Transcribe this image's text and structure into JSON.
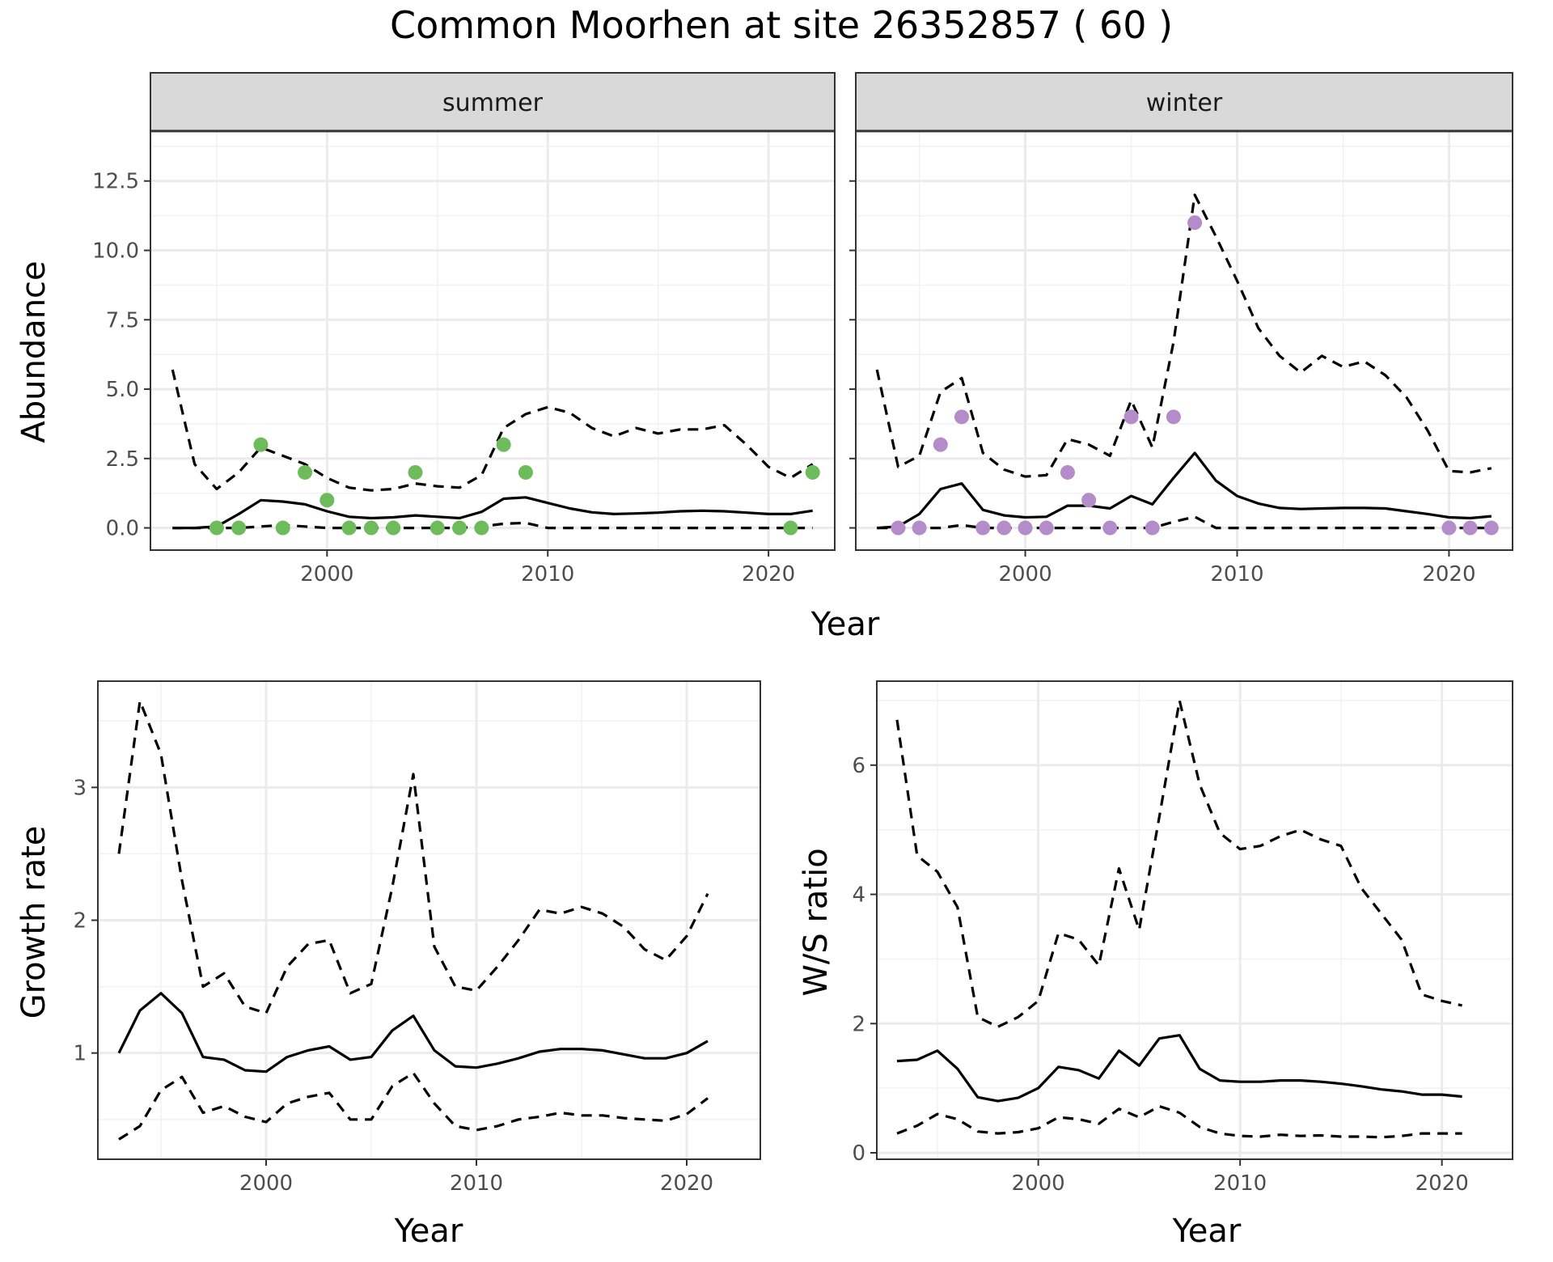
{
  "title": "Common Moorhen at site 26352857 ( 60 )",
  "colors": {
    "summer_points": "#6dbb5b",
    "winter_points": "#b48cc9",
    "lines": "#000000",
    "strip_bg": "#d9d9d9",
    "grid_major": "#ebebeb",
    "grid_minor": "#f2f2f2"
  },
  "chart_data": [
    {
      "type": "line",
      "facet": "summer",
      "xlabel": "Year",
      "ylabel": "Abundance",
      "xlim": [
        1992,
        2023
      ],
      "ylim": [
        -0.8,
        14.3
      ],
      "xticks": [
        2000,
        2010,
        2020
      ],
      "yticks": [
        0.0,
        2.5,
        5.0,
        7.5,
        10.0,
        12.5
      ],
      "ytick_labels": [
        "0.0",
        "2.5",
        "5.0",
        "7.5",
        "10.0",
        "12.5"
      ],
      "grid": true,
      "x": [
        1993,
        1994,
        1995,
        1996,
        1997,
        1998,
        1999,
        2000,
        2001,
        2002,
        2003,
        2004,
        2005,
        2006,
        2007,
        2008,
        2009,
        2010,
        2011,
        2012,
        2013,
        2014,
        2015,
        2016,
        2017,
        2018,
        2019,
        2020,
        2021,
        2022
      ],
      "series": [
        {
          "role": "upper",
          "style": "dashed",
          "values": [
            5.7,
            2.3,
            1.4,
            2.0,
            2.9,
            2.6,
            2.3,
            1.8,
            1.45,
            1.35,
            1.4,
            1.6,
            1.5,
            1.45,
            1.9,
            3.6,
            4.1,
            4.35,
            4.15,
            3.6,
            3.3,
            3.6,
            3.4,
            3.55,
            3.55,
            3.7,
            3.0,
            2.2,
            1.8,
            2.3
          ]
        },
        {
          "role": "mean",
          "style": "solid",
          "values": [
            0.0,
            0.0,
            0.05,
            0.5,
            1.0,
            0.95,
            0.85,
            0.6,
            0.4,
            0.35,
            0.38,
            0.45,
            0.4,
            0.35,
            0.58,
            1.05,
            1.1,
            0.9,
            0.7,
            0.56,
            0.5,
            0.52,
            0.55,
            0.6,
            0.62,
            0.6,
            0.55,
            0.5,
            0.5,
            0.62
          ]
        },
        {
          "role": "lower",
          "style": "dashed",
          "values": [
            0.0,
            0.0,
            0.0,
            0.0,
            0.05,
            0.1,
            0.05,
            0.0,
            0.0,
            0.0,
            0.0,
            0.0,
            0.0,
            0.0,
            0.05,
            0.15,
            0.18,
            0.0,
            0.0,
            0.0,
            0.0,
            0.0,
            0.0,
            0.0,
            0.0,
            0.0,
            0.0,
            0.0,
            0.0,
            0.0
          ]
        }
      ],
      "points": {
        "x": [
          1995,
          1996,
          1997,
          1998,
          1999,
          2000,
          2001,
          2002,
          2003,
          2004,
          2005,
          2006,
          2007,
          2008,
          2009,
          2021,
          2022
        ],
        "y": [
          0,
          0,
          3,
          0,
          2,
          1,
          0,
          0,
          0,
          2,
          0,
          0,
          0,
          3,
          2,
          0,
          2
        ]
      }
    },
    {
      "type": "line",
      "facet": "winter",
      "xlabel": "Year",
      "ylabel": "Abundance",
      "xlim": [
        1992,
        2023
      ],
      "ylim": [
        -0.8,
        14.3
      ],
      "xticks": [
        2000,
        2010,
        2020
      ],
      "yticks": [
        0.0,
        2.5,
        5.0,
        7.5,
        10.0,
        12.5
      ],
      "grid": true,
      "x": [
        1993,
        1994,
        1995,
        1996,
        1997,
        1998,
        1999,
        2000,
        2001,
        2002,
        2003,
        2004,
        2005,
        2006,
        2007,
        2008,
        2009,
        2010,
        2011,
        2012,
        2013,
        2014,
        2015,
        2016,
        2017,
        2018,
        2019,
        2020,
        2021,
        2022
      ],
      "series": [
        {
          "role": "upper",
          "style": "dashed",
          "values": [
            5.7,
            2.2,
            2.6,
            4.9,
            5.4,
            2.7,
            2.1,
            1.85,
            1.9,
            3.2,
            3.0,
            2.6,
            4.6,
            2.9,
            6.7,
            12.0,
            10.5,
            8.9,
            7.2,
            6.2,
            5.6,
            6.2,
            5.8,
            6.0,
            5.5,
            4.7,
            3.5,
            2.05,
            2.0,
            2.15
          ]
        },
        {
          "role": "mean",
          "style": "solid",
          "values": [
            0.0,
            0.05,
            0.5,
            1.4,
            1.6,
            0.65,
            0.45,
            0.38,
            0.4,
            0.8,
            0.8,
            0.7,
            1.15,
            0.85,
            1.8,
            2.7,
            1.7,
            1.15,
            0.88,
            0.72,
            0.68,
            0.7,
            0.72,
            0.72,
            0.7,
            0.6,
            0.5,
            0.38,
            0.35,
            0.42
          ]
        },
        {
          "role": "lower",
          "style": "dashed",
          "values": [
            0.0,
            0.0,
            0.0,
            0.0,
            0.1,
            0.0,
            0.0,
            0.0,
            0.0,
            0.0,
            0.0,
            0.0,
            0.0,
            0.0,
            0.22,
            0.4,
            0.0,
            0.0,
            0.0,
            0.0,
            0.0,
            0.0,
            0.0,
            0.0,
            0.0,
            0.0,
            0.0,
            0.0,
            0.0,
            0.0
          ]
        }
      ],
      "points": {
        "x": [
          1994,
          1995,
          1996,
          1997,
          1998,
          1999,
          2000,
          2001,
          2002,
          2003,
          2004,
          2005,
          2006,
          2007,
          2008,
          2020,
          2021,
          2022
        ],
        "y": [
          0,
          0,
          3,
          4,
          0,
          0,
          0,
          0,
          2,
          1,
          0,
          4,
          0,
          4,
          11,
          0,
          0,
          0
        ]
      }
    },
    {
      "type": "line",
      "xlabel": "Year",
      "ylabel": "Growth rate",
      "xlim": [
        1992,
        2023.5
      ],
      "ylim": [
        0.2,
        3.8
      ],
      "xticks": [
        2000,
        2010,
        2020
      ],
      "yticks": [
        1,
        2,
        3
      ],
      "grid": true,
      "x": [
        1993,
        1994,
        1995,
        1996,
        1997,
        1998,
        1999,
        2000,
        2001,
        2002,
        2003,
        2004,
        2005,
        2006,
        2007,
        2008,
        2009,
        2010,
        2011,
        2012,
        2013,
        2014,
        2015,
        2016,
        2017,
        2018,
        2019,
        2020,
        2021
      ],
      "series": [
        {
          "role": "upper",
          "style": "dashed",
          "values": [
            2.5,
            3.65,
            3.25,
            2.3,
            1.5,
            1.6,
            1.35,
            1.3,
            1.65,
            1.82,
            1.85,
            1.45,
            1.52,
            2.25,
            3.1,
            1.8,
            1.5,
            1.47,
            1.65,
            1.85,
            2.08,
            2.05,
            2.1,
            2.05,
            1.95,
            1.78,
            1.7,
            1.88,
            2.2
          ]
        },
        {
          "role": "mean",
          "style": "solid",
          "values": [
            1.0,
            1.32,
            1.45,
            1.3,
            0.97,
            0.95,
            0.87,
            0.86,
            0.97,
            1.02,
            1.05,
            0.95,
            0.97,
            1.17,
            1.28,
            1.02,
            0.9,
            0.89,
            0.92,
            0.96,
            1.01,
            1.03,
            1.03,
            1.02,
            0.99,
            0.96,
            0.96,
            1.0,
            1.09
          ]
        },
        {
          "role": "lower",
          "style": "dashed",
          "values": [
            0.35,
            0.45,
            0.72,
            0.82,
            0.55,
            0.6,
            0.52,
            0.48,
            0.62,
            0.67,
            0.7,
            0.5,
            0.5,
            0.75,
            0.85,
            0.62,
            0.45,
            0.42,
            0.45,
            0.5,
            0.52,
            0.55,
            0.53,
            0.53,
            0.51,
            0.5,
            0.49,
            0.54,
            0.66
          ]
        }
      ]
    },
    {
      "type": "line",
      "xlabel": "Year",
      "ylabel": "W/S ratio",
      "xlim": [
        1992,
        2023.5
      ],
      "ylim": [
        -0.1,
        7.3
      ],
      "xticks": [
        2000,
        2010,
        2020
      ],
      "yticks": [
        0,
        2,
        4,
        6
      ],
      "grid": true,
      "x": [
        1993,
        1994,
        1995,
        1996,
        1997,
        1998,
        1999,
        2000,
        2001,
        2002,
        2003,
        2004,
        2005,
        2006,
        2007,
        2008,
        2009,
        2010,
        2011,
        2012,
        2013,
        2014,
        2015,
        2016,
        2017,
        2018,
        2019,
        2020,
        2021
      ],
      "series": [
        {
          "role": "upper",
          "style": "dashed",
          "values": [
            6.7,
            4.6,
            4.35,
            3.8,
            2.1,
            1.95,
            2.1,
            2.35,
            3.4,
            3.3,
            2.9,
            4.4,
            3.45,
            5.2,
            7.0,
            5.7,
            4.95,
            4.7,
            4.75,
            4.9,
            5.0,
            4.85,
            4.75,
            4.1,
            3.7,
            3.3,
            2.45,
            2.35,
            2.28
          ]
        },
        {
          "role": "mean",
          "style": "solid",
          "values": [
            1.42,
            1.44,
            1.58,
            1.3,
            0.86,
            0.8,
            0.85,
            1.0,
            1.33,
            1.28,
            1.15,
            1.58,
            1.35,
            1.77,
            1.82,
            1.3,
            1.12,
            1.1,
            1.1,
            1.12,
            1.12,
            1.1,
            1.07,
            1.03,
            0.98,
            0.95,
            0.9,
            0.9,
            0.87
          ]
        },
        {
          "role": "lower",
          "style": "dashed",
          "values": [
            0.3,
            0.42,
            0.6,
            0.52,
            0.33,
            0.3,
            0.32,
            0.38,
            0.55,
            0.52,
            0.45,
            0.68,
            0.55,
            0.72,
            0.62,
            0.4,
            0.3,
            0.26,
            0.25,
            0.28,
            0.26,
            0.27,
            0.25,
            0.25,
            0.24,
            0.26,
            0.3,
            0.3,
            0.3
          ]
        }
      ]
    }
  ],
  "facet_strips": {
    "summer": "summer",
    "winter": "winter"
  },
  "labels": {
    "top_xlabel": "Year",
    "top_ylabel": "Abundance",
    "growth_xlabel": "Year",
    "growth_ylabel": "Growth rate",
    "ratio_xlabel": "Year",
    "ratio_ylabel": "W/S ratio"
  }
}
